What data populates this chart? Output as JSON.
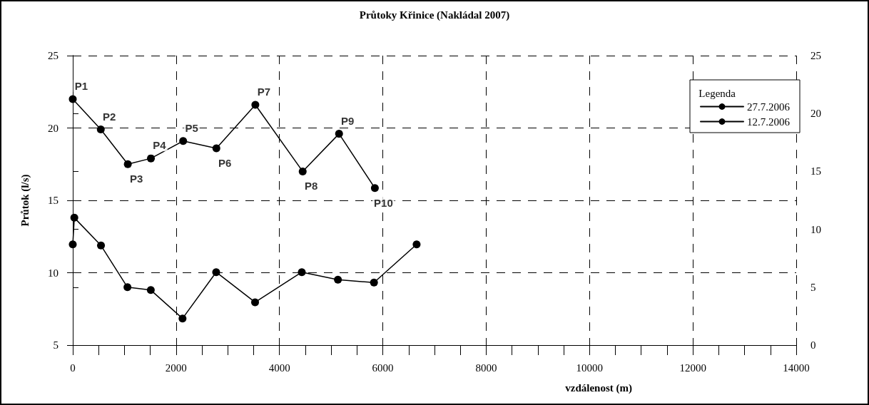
{
  "chart_data": {
    "type": "line",
    "title": "Průtoky Křinice (Nakládal 2007)",
    "xlabel": "vzdálenost (m)",
    "ylabel": "Průtok (l/s)",
    "legend_title": "Legenda",
    "xlim": [
      0,
      14000
    ],
    "xticks": [
      0,
      {
        "value": 500,
        "label": null
      },
      {
        "value": 1000,
        "label": null
      },
      {
        "value": 1500,
        "label": null
      },
      2000,
      {
        "value": 2500,
        "label": null
      },
      {
        "value": 3000,
        "label": null
      },
      {
        "value": 3500,
        "label": null
      },
      4000,
      {
        "value": 4500,
        "label": null
      },
      {
        "value": 5000,
        "label": null
      },
      {
        "value": 5500,
        "label": null
      },
      6000,
      {
        "value": 6500,
        "label": null
      },
      {
        "value": 7000,
        "label": null
      },
      {
        "value": 7500,
        "label": null
      },
      8000,
      {
        "value": 8500,
        "label": null
      },
      {
        "value": 9000,
        "label": null
      },
      {
        "value": 9500,
        "label": null
      },
      10000,
      {
        "value": 10500,
        "label": null
      },
      {
        "value": 11000,
        "label": null
      },
      {
        "value": 11500,
        "label": null
      },
      12000,
      {
        "value": 12500,
        "label": null
      },
      {
        "value": 13000,
        "label": null
      },
      {
        "value": 13500,
        "label": null
      },
      14000
    ],
    "ylim": [
      5,
      25
    ],
    "yticks": [
      5,
      10,
      15,
      20,
      25
    ],
    "y2lim": [
      0,
      25
    ],
    "y2ticks": [
      0,
      5,
      10,
      15,
      20,
      25
    ],
    "series": [
      {
        "name": "27.7.2006",
        "color": "#000000",
        "x": [
          0,
          542,
          1065,
          1512,
          2136,
          2779,
          3533,
          4449,
          5153,
          5846
        ],
        "values": [
          22.0,
          19.9,
          17.5,
          17.9,
          19.1,
          18.6,
          21.6,
          17.0,
          19.6,
          15.85
        ]
      },
      {
        "name": "12.7.2006",
        "color": "#000000",
        "axis": "y2",
        "x": [
          0,
          30,
          546,
          1058,
          1510,
          2124,
          2775,
          3528,
          4432,
          5131,
          5829,
          6654
        ],
        "values": [
          8.7,
          11.0,
          8.6,
          5.0,
          4.75,
          2.3,
          6.3,
          3.7,
          6.3,
          5.65,
          5.4,
          8.7
        ]
      }
    ],
    "annotations": [
      {
        "text": "P1",
        "x": 0,
        "y": 22.0
      },
      {
        "text": "P2",
        "x": 542,
        "y": 19.9
      },
      {
        "text": "P3",
        "x": 1065,
        "y": 17.5
      },
      {
        "text": "P4",
        "x": 1512,
        "y": 17.9
      },
      {
        "text": "P5",
        "x": 2136,
        "y": 19.1
      },
      {
        "text": "P6",
        "x": 2779,
        "y": 18.6
      },
      {
        "text": "P7",
        "x": 3533,
        "y": 21.6
      },
      {
        "text": "P8",
        "x": 4449,
        "y": 17.0
      },
      {
        "text": "P9",
        "x": 5153,
        "y": 19.6
      },
      {
        "text": "P10",
        "x": 5846,
        "y": 15.85
      }
    ],
    "grid": true,
    "legend": "top right",
    "marker": "circle",
    "line_style": "solid"
  }
}
